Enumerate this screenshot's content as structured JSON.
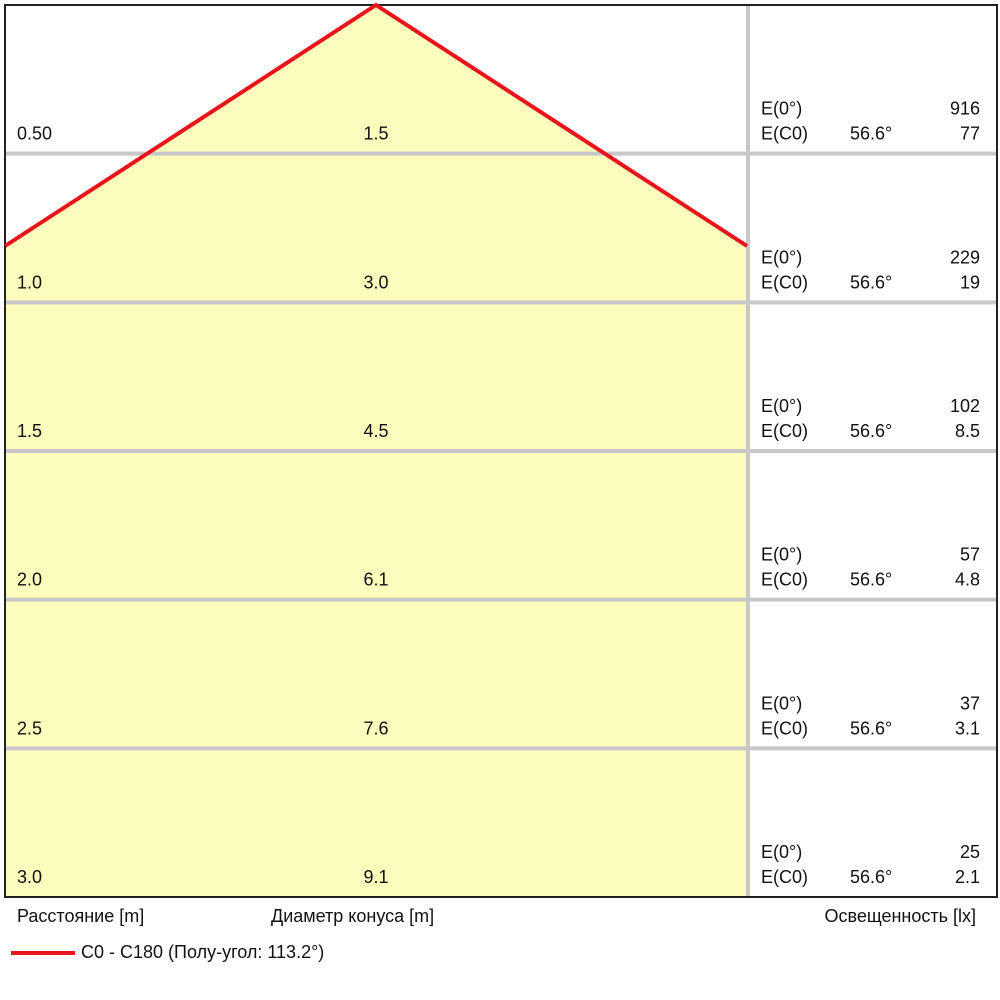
{
  "chart_data": {
    "type": "cone-diagram",
    "rows": [
      {
        "distance": "0.50",
        "diameter": "1.5",
        "e0_label": "E(0°)",
        "e0": "916",
        "ec0_label": "E(C0)",
        "angle": "56.6°",
        "ec0": "77"
      },
      {
        "distance": "1.0",
        "diameter": "3.0",
        "e0_label": "E(0°)",
        "e0": "229",
        "ec0_label": "E(C0)",
        "angle": "56.6°",
        "ec0": "19"
      },
      {
        "distance": "1.5",
        "diameter": "4.5",
        "e0_label": "E(0°)",
        "e0": "102",
        "ec0_label": "E(C0)",
        "angle": "56.6°",
        "ec0": "8.5"
      },
      {
        "distance": "2.0",
        "diameter": "6.1",
        "e0_label": "E(0°)",
        "e0": "57",
        "ec0_label": "E(C0)",
        "angle": "56.6°",
        "ec0": "4.8"
      },
      {
        "distance": "2.5",
        "diameter": "7.6",
        "e0_label": "E(0°)",
        "e0": "37",
        "ec0_label": "E(C0)",
        "angle": "56.6°",
        "ec0": "3.1"
      },
      {
        "distance": "3.0",
        "diameter": "9.1",
        "e0_label": "E(0°)",
        "e0": "25",
        "ec0_label": "E(C0)",
        "angle": "56.6°",
        "ec0": "2.1"
      }
    ],
    "half_angle_deg": 113.2,
    "labels": {
      "distance": "Расстояние [m]",
      "diameter": "Диаметр конуса [m]",
      "illuminance": "Освещенность [lx]"
    },
    "legend": {
      "text": "C0 - C180 (Полу-угол: 113.2°)",
      "color": "#e8141c"
    },
    "colors": {
      "cone_fill": "#fcfcbc",
      "cone_line": "#e8141c",
      "grid": "#c8c8c8",
      "border": "#222222"
    }
  }
}
